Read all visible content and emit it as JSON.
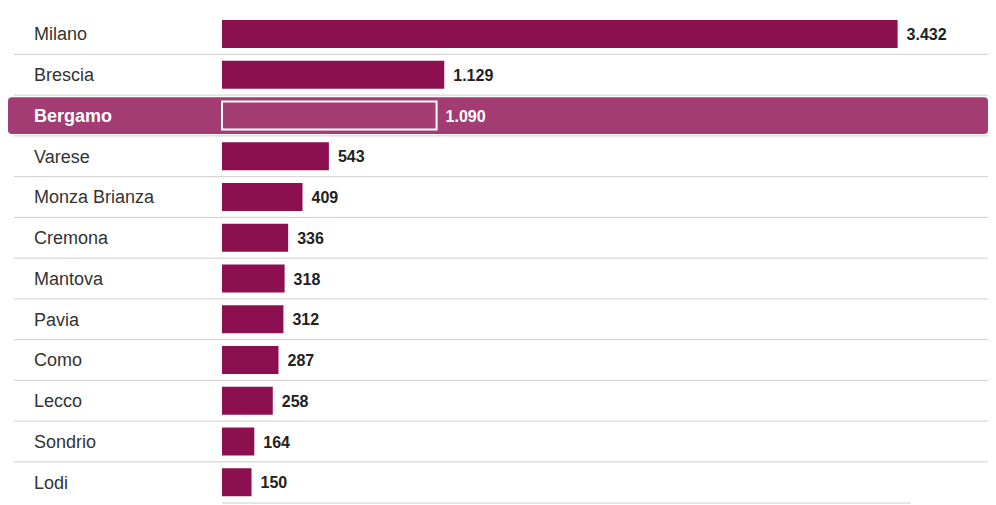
{
  "chart_data": {
    "type": "bar",
    "orientation": "horizontal",
    "categories": [
      "Milano",
      "Brescia",
      "Bergamo",
      "Varese",
      "Monza Brianza",
      "Cremona",
      "Mantova",
      "Pavia",
      "Como",
      "Lecco",
      "Sondrio",
      "Lodi"
    ],
    "values": [
      3432,
      1129,
      1090,
      543,
      409,
      336,
      318,
      312,
      287,
      258,
      164,
      150
    ],
    "value_labels": [
      "3.432",
      "1.129",
      "1.090",
      "543",
      "409",
      "336",
      "318",
      "312",
      "287",
      "258",
      "164",
      "150"
    ],
    "color": "#8c0f50",
    "colors": [
      "#8c0f50",
      "#8c0f50",
      "#a33c73",
      "#8c0f50",
      "#8c0f50",
      "#8c0f50",
      "#8c0f50",
      "#8c0f50",
      "#8c0f50",
      "#8c0f50",
      "#8c0f50",
      "#8c0f50"
    ],
    "xlim": [
      0,
      3500
    ],
    "data_labels": true,
    "tick_labels": "y",
    "grid": true
  }
}
